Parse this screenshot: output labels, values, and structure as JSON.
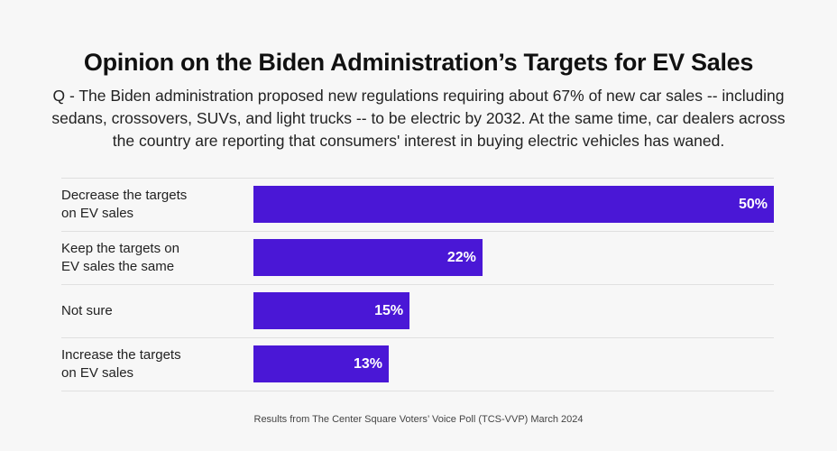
{
  "chart_data": {
    "type": "bar",
    "orientation": "horizontal",
    "title": "Opinion on the Biden Administration’s Targets for EV Sales",
    "subtitle": "Q - The Biden administration proposed new regulations requiring about 67% of new car sales -- including sedans, crossovers, SUVs, and light trucks -- to be electric by 2032. At the same time, car dealers across the country are reporting that consumers' interest in buying electric vehicles has waned.",
    "categories": [
      "Decrease the targets on EV sales",
      "Keep the targets on EV sales the same",
      "Not sure",
      "Increase the targets on EV sales"
    ],
    "values": [
      50,
      22,
      15,
      13
    ],
    "value_labels": [
      "50%",
      "22%",
      "15%",
      "13%"
    ],
    "xlim": [
      0,
      50
    ],
    "bar_color": "#4a17d6",
    "grid": false,
    "source": "Results from The Center Square Voters’ Voice Poll (TCS-VVP) March 2024"
  }
}
